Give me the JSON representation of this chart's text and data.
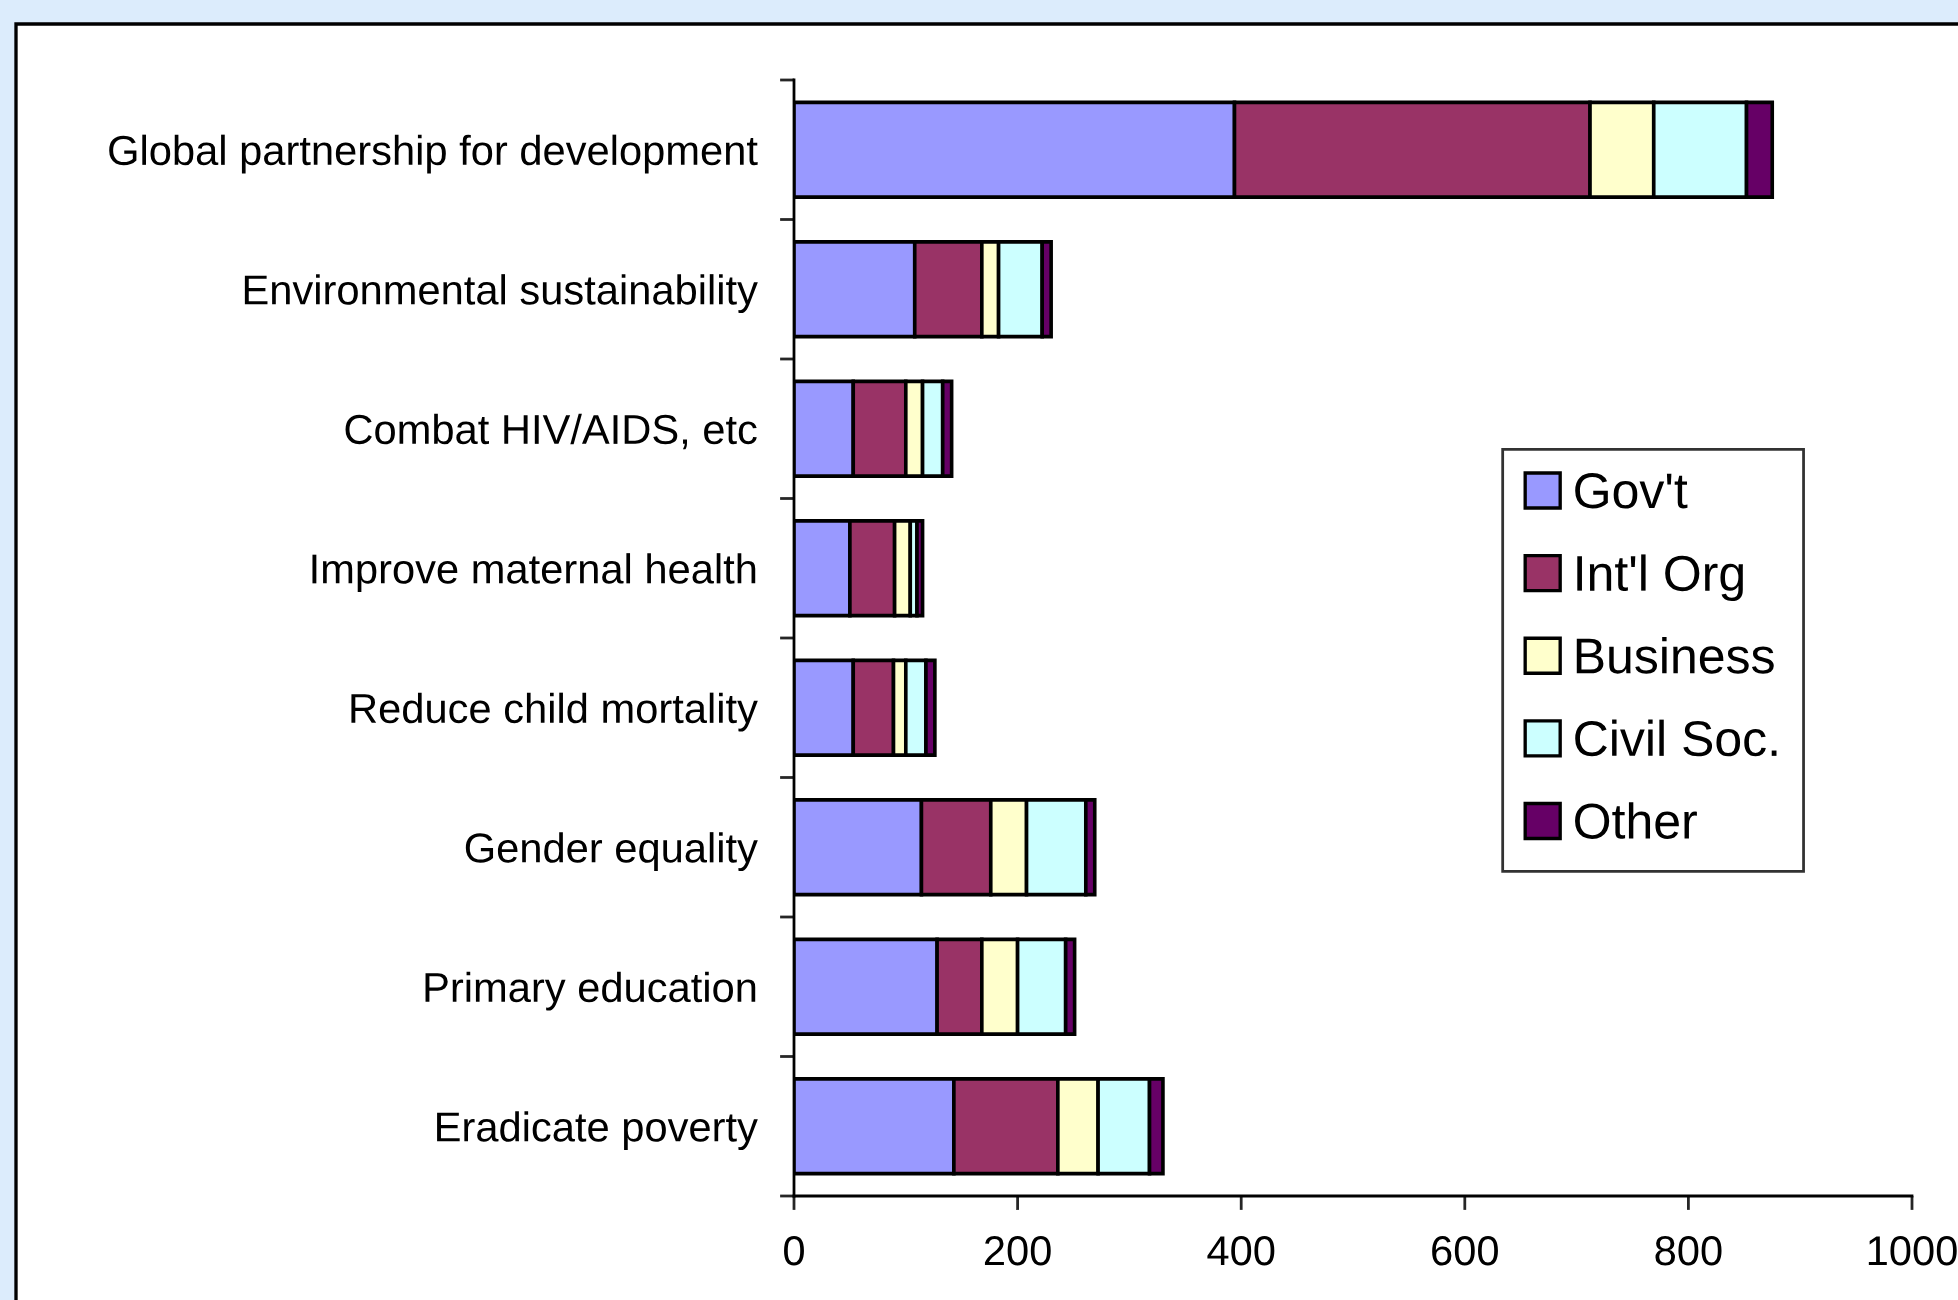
{
  "chart_data": {
    "type": "bar",
    "orientation": "horizontal",
    "stacked": true,
    "categories": [
      "Global partnership for development",
      "Environmental sustainability",
      "Combat HIV/AIDS, etc",
      "Improve maternal health",
      "Reduce child mortality",
      "Gender equality",
      "Primary education",
      "Eradicate poverty"
    ],
    "series": [
      {
        "name": "Gov't",
        "color": "#9999ff",
        "values": [
          394,
          108,
          53,
          50,
          53,
          114,
          128,
          143
        ]
      },
      {
        "name": "Int'l Org",
        "color": "#993366",
        "values": [
          318,
          60,
          47,
          40,
          36,
          62,
          40,
          93
        ]
      },
      {
        "name": "Business",
        "color": "#ffffcc",
        "values": [
          57,
          15,
          15,
          14,
          11,
          32,
          32,
          36
        ]
      },
      {
        "name": "Civil Soc.",
        "color": "#ccffff",
        "values": [
          83,
          39,
          18,
          6,
          18,
          53,
          43,
          46
        ]
      },
      {
        "name": "Other",
        "color": "#660066",
        "values": [
          23,
          8,
          8,
          5,
          8,
          8,
          8,
          12
        ]
      }
    ],
    "xlim": [
      0,
      1000
    ],
    "xticks": [
      0,
      200,
      400,
      600,
      800,
      1000
    ],
    "grid": false,
    "legend": "right"
  }
}
